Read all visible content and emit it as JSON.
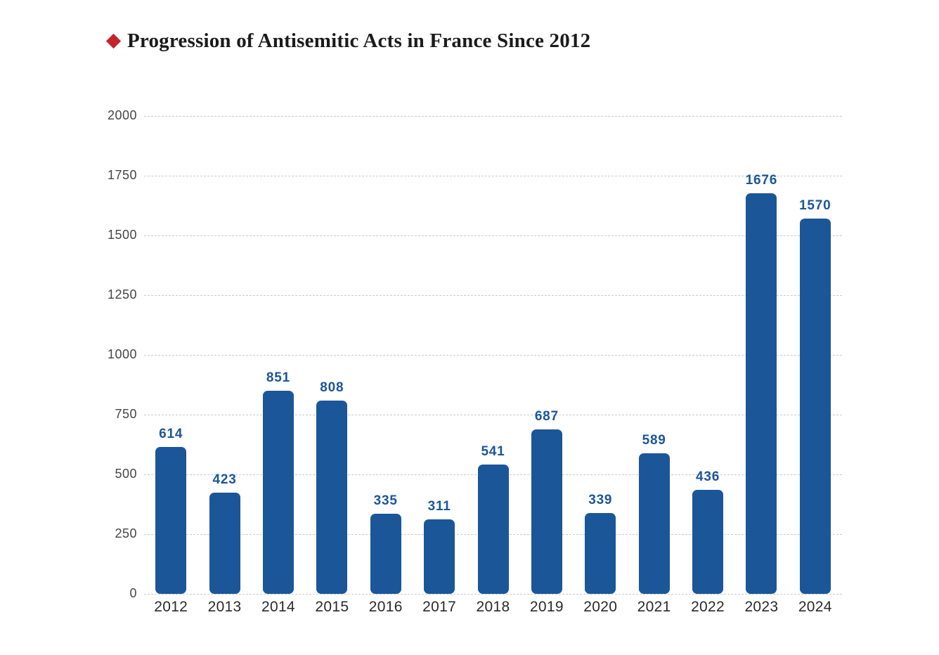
{
  "header": {
    "title": "Progression of Antisemitic Acts in France Since 2012",
    "bullet_icon": "diamond-icon",
    "bullet_color": "#C5242B",
    "title_color": "#1b1b1b"
  },
  "chart_data": {
    "type": "bar",
    "title": "Progression of Antisemitic Acts in France Since 2012",
    "categories": [
      "2012",
      "2013",
      "2014",
      "2015",
      "2016",
      "2017",
      "2018",
      "2019",
      "2020",
      "2021",
      "2022",
      "2023",
      "2024"
    ],
    "values": [
      614,
      423,
      851,
      808,
      335,
      311,
      541,
      687,
      339,
      589,
      436,
      1676,
      1570
    ],
    "xlabel": "",
    "ylabel": "",
    "ylim": [
      0,
      2000
    ],
    "yticks": [
      0,
      250,
      500,
      750,
      1000,
      1250,
      1500,
      1750,
      2000
    ],
    "grid": "horizontal-dashed",
    "legend": "none",
    "bar_color": "#1B5699",
    "value_label_color": "#1B5699",
    "gridline_color": "#cbcbcb",
    "ytick_color": "#454545",
    "xtick_color": "#2a2a2a"
  }
}
